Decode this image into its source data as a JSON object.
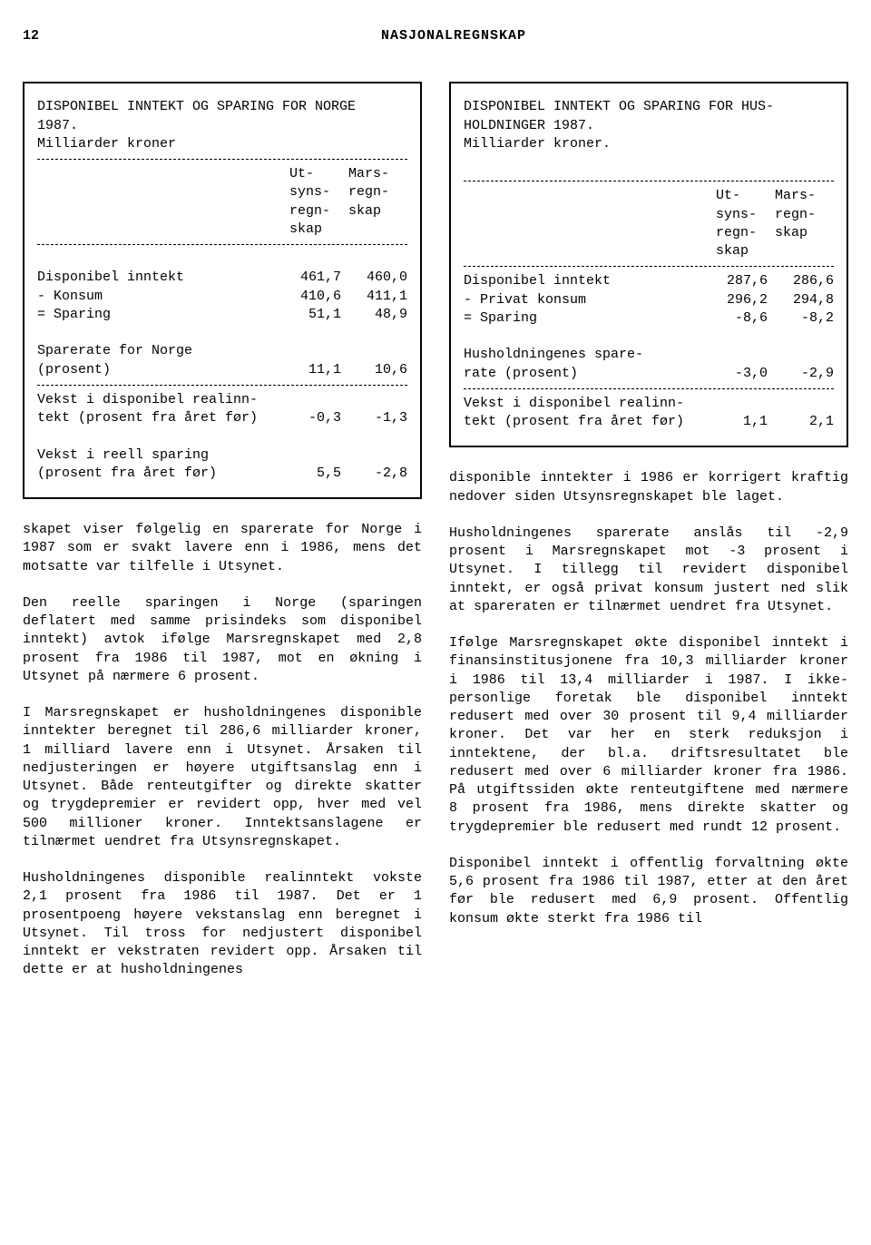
{
  "page": {
    "number": "12",
    "header": "NASJONALREGNSKAP"
  },
  "box_left": {
    "title_line1": "DISPONIBEL INNTEKT OG SPARING FOR NORGE",
    "title_line2": "1987.",
    "title_line3": "Milliarder kroner",
    "col_headers": {
      "c1l1": "Ut-",
      "c1l2": "syns-",
      "c1l3": "regn-",
      "c1l4": "skap",
      "c2l1": "Mars-",
      "c2l2": "regn-",
      "c2l3": "skap"
    },
    "rows": [
      {
        "label": "Disponibel inntekt",
        "v1": "461,7",
        "v2": "460,0"
      },
      {
        "label": "- Konsum",
        "v1": "410,6",
        "v2": "411,1"
      },
      {
        "label": "= Sparing",
        "v1": "51,1",
        "v2": "48,9"
      }
    ],
    "rate": {
      "label_l1": "Sparerate for Norge",
      "label_l2": "(prosent)",
      "v1": "11,1",
      "v2": "10,6"
    },
    "growth_disp": {
      "label_l1": "Vekst i disponibel realinn-",
      "label_l2": "tekt (prosent fra året før)",
      "v1": "-0,3",
      "v2": "-1,3"
    },
    "growth_real": {
      "label_l1": "Vekst i reell sparing",
      "label_l2": "(prosent fra året før)",
      "v1": "5,5",
      "v2": "-2,8"
    }
  },
  "box_right": {
    "title_line1": "DISPONIBEL INNTEKT OG SPARING FOR HUS-",
    "title_line2": "HOLDNINGER 1987.",
    "title_line3": "Milliarder kroner.",
    "col_headers": {
      "c1l1": "Ut-",
      "c1l2": "syns-",
      "c1l3": "regn-",
      "c1l4": "skap",
      "c2l1": "Mars-",
      "c2l2": "regn-",
      "c2l3": "skap"
    },
    "rows": [
      {
        "label": "Disponibel inntekt",
        "v1": "287,6",
        "v2": "286,6"
      },
      {
        "label": "- Privat konsum",
        "v1": "296,2",
        "v2": "294,8"
      },
      {
        "label": "= Sparing",
        "v1": "-8,6",
        "v2": "-8,2"
      }
    ],
    "rate": {
      "label_l1": "Husholdningenes spare-",
      "label_l2": "rate (prosent)",
      "v1": "-3,0",
      "v2": "-2,9"
    },
    "growth_disp": {
      "label_l1": "Vekst i disponibel realinn-",
      "label_l2": "tekt (prosent fra året før)",
      "v1": "1,1",
      "v2": "2,1"
    }
  },
  "body_left": {
    "p1": "skapet viser følgelig en sparerate for Norge i 1987 som er svakt lavere enn i 1986, mens det motsatte var tilfelle i Utsynet.",
    "p2": "Den reelle sparingen i Norge (sparingen deflatert med samme prisindeks som disponibel inntekt) avtok ifølge Marsregnskapet med 2,8 prosent fra 1986 til 1987, mot en økning i Utsynet på nærmere 6 prosent.",
    "p3": "I Marsregnskapet er husholdningenes disponible inntekter beregnet til 286,6 milliarder kroner, 1 milliard lavere enn i Utsynet. Årsaken til nedjusteringen er høyere utgiftsanslag enn i Utsynet. Både renteutgifter og direkte skatter og trygdepremier er revidert opp, hver med vel 500 millioner kroner. Inntektsanslagene er tilnærmet uendret fra Utsynsregnskapet.",
    "p4": "Husholdningenes disponible realinntekt vokste 2,1 prosent fra 1986 til 1987. Det er 1 prosentpoeng høyere vekstanslag enn beregnet i Utsynet. Til tross for nedjustert disponibel inntekt er vekstraten revidert opp. Årsaken til dette er at husholdningenes"
  },
  "body_right": {
    "p1": "disponible inntekter i 1986 er korrigert kraftig nedover siden Utsynsregnskapet ble laget.",
    "p2": "Husholdningenes sparerate anslås til -2,9 prosent i Marsregnskapet mot -3 prosent i Utsynet. I tillegg til revidert disponibel inntekt, er også privat konsum justert ned slik at spareraten er tilnærmet uendret fra Utsynet.",
    "p3": "Ifølge Marsregnskapet økte disponibel inntekt i finansinstitusjonene fra 10,3 milliarder kroner i 1986 til 13,4 milliarder i 1987. I ikke-personlige foretak ble disponibel inntekt redusert med over 30 prosent til 9,4 milliarder kroner. Det var her en sterk reduksjon i inntektene, der bl.a. driftsresultatet ble redusert med over 6 milliarder kroner fra 1986. På utgiftssiden økte renteutgiftene med nærmere 8 prosent fra 1986, mens direkte skatter og trygdepremier ble redusert med rundt 12 prosent.",
    "p4": "Disponibel inntekt i offentlig forvaltning økte 5,6 prosent fra 1986 til 1987, etter at den året før ble redusert med 6,9 prosent. Offentlig konsum økte sterkt fra 1986 til"
  }
}
